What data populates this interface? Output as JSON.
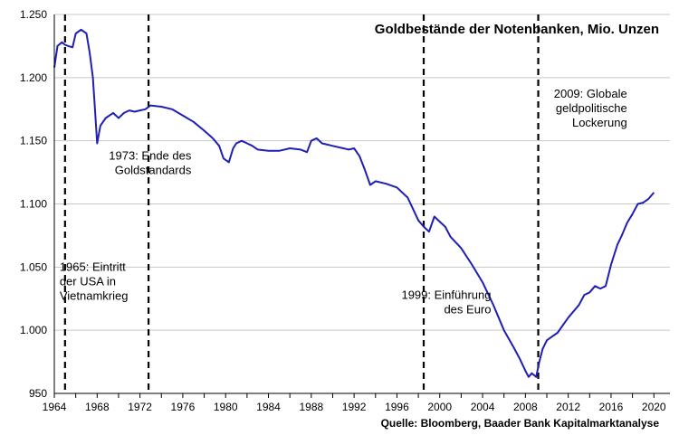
{
  "chart_data": {
    "type": "line",
    "title": "Goldbestände der Notenbanken, Mio. Unzen",
    "source": "Quelle:  Bloomberg, Baader Bank Kapitalmarktanalyse",
    "xlim": [
      1964,
      2021.5
    ],
    "ylim": [
      950,
      1250
    ],
    "grid": true,
    "x_ticks": [
      1964,
      1968,
      1972,
      1976,
      1980,
      1984,
      1988,
      1992,
      1996,
      2000,
      2004,
      2008,
      2012,
      2016,
      2020
    ],
    "y_ticks": [
      {
        "value": 950,
        "label": "950"
      },
      {
        "value": 1000,
        "label": "1.000"
      },
      {
        "value": 1050,
        "label": "1.050"
      },
      {
        "value": 1100,
        "label": "1.100"
      },
      {
        "value": 1150,
        "label": "1.150"
      },
      {
        "value": 1200,
        "label": "1.200"
      },
      {
        "value": 1250,
        "label": "1.250"
      }
    ],
    "series": [
      {
        "color": "#1f1fb4",
        "x": [
          1964.0,
          1964.3,
          1964.7,
          1965.0,
          1965.3,
          1965.7,
          1966.0,
          1966.5,
          1967.0,
          1967.3,
          1967.6,
          1967.8,
          1968.0,
          1968.3,
          1968.8,
          1969.5,
          1970.0,
          1970.5,
          1971.0,
          1971.5,
          1972.0,
          1972.5,
          1973.0,
          1974.0,
          1975.0,
          1976.0,
          1977.0,
          1978.0,
          1978.8,
          1979.4,
          1979.8,
          1980.3,
          1980.7,
          1981.0,
          1981.5,
          1982.0,
          1982.5,
          1983.0,
          1984.0,
          1985.0,
          1986.0,
          1987.0,
          1987.6,
          1988.0,
          1988.5,
          1989.0,
          1990.0,
          1991.0,
          1991.5,
          1992.0,
          1992.5,
          1993.0,
          1993.5,
          1994.0,
          1995.0,
          1996.0,
          1997.0,
          1997.5,
          1998.0,
          1998.5,
          1999.0,
          1999.5,
          2000.0,
          2000.5,
          2001.0,
          2002.0,
          2003.0,
          2004.0,
          2005.0,
          2006.0,
          2007.0,
          2007.5,
          2008.0,
          2008.3,
          2008.6,
          2009.0,
          2009.3,
          2009.6,
          2010.0,
          2010.5,
          2011.0,
          2012.0,
          2013.0,
          2013.5,
          2014.0,
          2014.5,
          2015.0,
          2015.5,
          2016.0,
          2016.3,
          2016.6,
          2017.0,
          2017.5,
          2018.0,
          2018.5,
          2019.0,
          2019.5,
          2020.0
        ],
        "y": [
          1208,
          1225,
          1228,
          1226,
          1225,
          1224,
          1235,
          1238,
          1235,
          1220,
          1200,
          1175,
          1148,
          1162,
          1168,
          1172,
          1168,
          1172,
          1174,
          1173,
          1174,
          1175,
          1178,
          1177,
          1175,
          1170,
          1165,
          1158,
          1152,
          1146,
          1136,
          1133,
          1144,
          1148,
          1150,
          1148,
          1146,
          1143,
          1142,
          1142,
          1144,
          1143,
          1141,
          1150,
          1152,
          1148,
          1146,
          1144,
          1143,
          1144,
          1138,
          1127,
          1115,
          1118,
          1116,
          1113,
          1105,
          1096,
          1087,
          1082,
          1078,
          1090,
          1086,
          1082,
          1074,
          1065,
          1052,
          1038,
          1020,
          1000,
          985,
          977,
          968,
          963,
          966,
          963,
          975,
          985,
          992,
          995,
          998,
          1010,
          1020,
          1028,
          1030,
          1035,
          1033,
          1035,
          1052,
          1060,
          1068,
          1075,
          1085,
          1092,
          1100,
          1101,
          1104,
          1109
        ]
      }
    ],
    "vlines": [
      1965,
      1972.8,
      1998.5,
      2009.2
    ],
    "annotations": [
      {
        "x": 1965,
        "y": 1047,
        "lines": [
          "1965: Eintritt",
          "der USA in",
          "Vietnamkrieg"
        ],
        "align": "start"
      },
      {
        "x": 1976.8,
        "y": 1135,
        "lines": [
          "1973: Ende des",
          "Goldstandards"
        ],
        "align": "end"
      },
      {
        "x": 2004.8,
        "y": 1025,
        "lines": [
          "1999: Einführung",
          "des Euro"
        ],
        "align": "end"
      },
      {
        "x": 2017.5,
        "y": 1184,
        "lines": [
          "2009: Globale",
          "geldpolitische",
          "Lockerung"
        ],
        "align": "end"
      }
    ]
  }
}
